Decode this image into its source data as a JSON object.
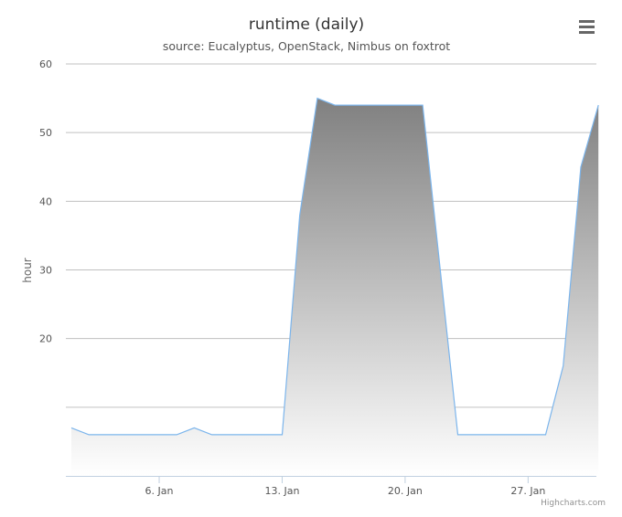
{
  "chart_data": {
    "type": "area",
    "title": "runtime (daily)",
    "subtitle": "source: Eucalyptus, OpenStack, Nimbus on foxtrot",
    "xlabel": "",
    "ylabel": "hour",
    "x_ticks": [
      "6. Jan",
      "13. Jan",
      "20. Jan",
      "27. Jan"
    ],
    "y_ticks": [
      20,
      30,
      40,
      50,
      60
    ],
    "ylim": [
      0,
      60
    ],
    "x_range_days": [
      1,
      31.2
    ],
    "x_tick_days": [
      6,
      13,
      20,
      27
    ],
    "grid": true,
    "legend": "none",
    "series": [
      {
        "x_days": [
          1,
          2,
          3,
          4,
          5,
          6,
          7,
          8,
          9,
          10,
          11,
          12,
          13,
          14,
          15,
          16,
          17,
          18,
          19,
          20,
          21,
          22,
          23,
          24,
          25,
          26,
          27,
          28,
          29,
          30,
          31
        ],
        "values": [
          7,
          6,
          6,
          6,
          6,
          6,
          6,
          7,
          6,
          6,
          6,
          6,
          6,
          38,
          55,
          54,
          54,
          54,
          54,
          54,
          54,
          30,
          6,
          6,
          6,
          6,
          6,
          6,
          16,
          45,
          54
        ]
      }
    ],
    "colors": {
      "line": "#7cb5ec",
      "fill_top": "#808080",
      "fill_bottom": "#ffffff",
      "grid": "#c0c0c0"
    }
  },
  "credits": "Highcharts.com",
  "menu_icon": "hamburger-menu-icon"
}
